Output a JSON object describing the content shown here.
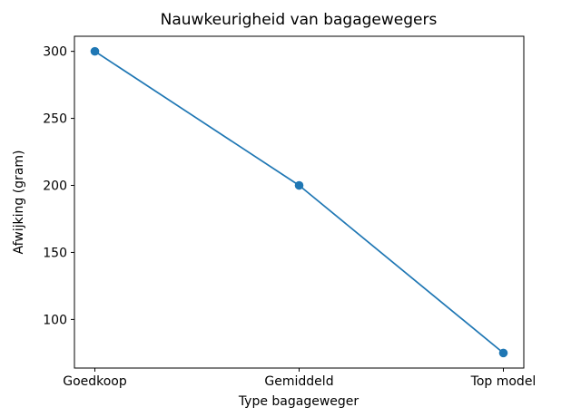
{
  "chart_data": {
    "type": "line",
    "title": "Nauwkeurigheid van bagagewegers",
    "xlabel": "Type bagageweger",
    "ylabel": "Afwijking (gram)",
    "categories": [
      "Goedkoop",
      "Gemiddeld",
      "Top model"
    ],
    "values": [
      300,
      200,
      75
    ],
    "yticks": [
      100,
      150,
      200,
      250,
      300
    ],
    "ylim": [
      63.75,
      311.25
    ],
    "xlim": [
      -0.1,
      2.1
    ],
    "line_color": "#1f77b4",
    "marker": "circle",
    "grid": false,
    "legend": null,
    "background_color": "#ffffff"
  }
}
